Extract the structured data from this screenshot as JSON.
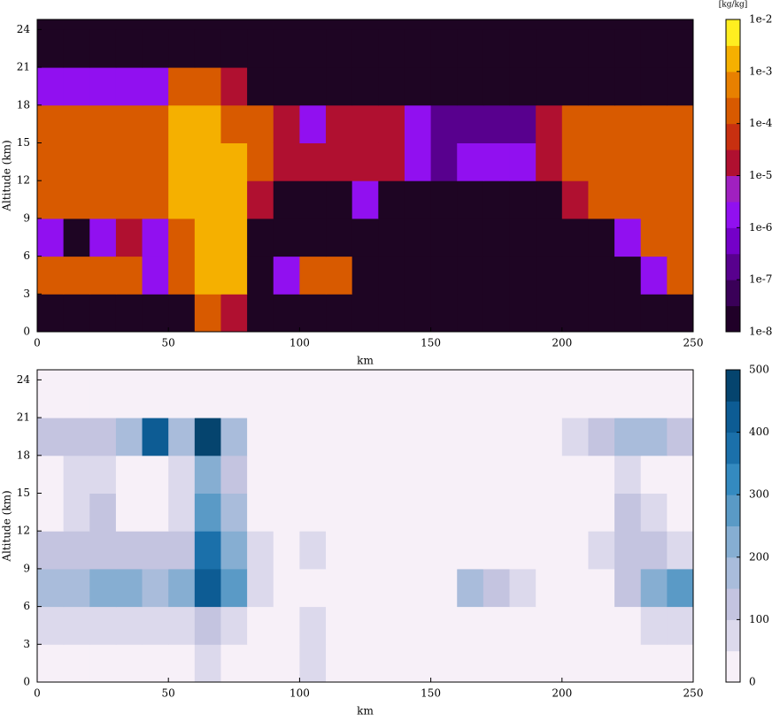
{
  "chart_data": [
    {
      "type": "heatmap",
      "xlabel": "km",
      "ylabel": "Altitude (km)",
      "xlim": [
        0,
        250
      ],
      "ylim": [
        0,
        24.8
      ],
      "xticks": [
        0,
        50,
        100,
        150,
        200,
        250
      ],
      "yticks": [
        0,
        3,
        6,
        9,
        12,
        15,
        18,
        21,
        24
      ],
      "x": [
        5,
        15,
        25,
        35,
        45,
        55,
        65,
        75,
        85,
        95,
        105,
        115,
        125,
        135,
        145,
        155,
        165,
        175,
        185,
        195,
        205,
        215,
        225,
        235,
        245
      ],
      "y": [
        1.5,
        4.5,
        7.5,
        10.5,
        13.5,
        16.5,
        19.5,
        22.5
      ],
      "background": "#1e0523",
      "z": [
        [
          0,
          0,
          0,
          0,
          0,
          0,
          0.0001,
          1e-05,
          0,
          0,
          0,
          0,
          0,
          0,
          0,
          0,
          0,
          0,
          0,
          0,
          0,
          0,
          0,
          0,
          0
        ],
        [
          0.0001,
          0.0001,
          0.0001,
          0.0001,
          1e-06,
          0.0001,
          0.003,
          0.001,
          0,
          1e-06,
          0.0001,
          0.0001,
          0,
          0,
          0,
          0,
          0,
          0,
          0,
          0,
          0,
          0,
          0,
          1e-06,
          0.0001
        ],
        [
          1e-06,
          0,
          1e-06,
          1e-05,
          1e-06,
          0.0001,
          0.003,
          0.001,
          0,
          0,
          0,
          0,
          0,
          0,
          0,
          0,
          0,
          0,
          0,
          0,
          0,
          0,
          1e-06,
          0.0001,
          0.0001
        ],
        [
          0.0001,
          0.0001,
          0.0001,
          0.0001,
          0.0001,
          0.001,
          0.003,
          0.001,
          1e-05,
          0,
          0,
          0,
          1e-06,
          0,
          0,
          0,
          0,
          0,
          0,
          0,
          1e-05,
          0.0001,
          0.0001,
          0.0001,
          0.0001
        ],
        [
          0.0001,
          0.0001,
          0.0001,
          0.0001,
          0.0001,
          0.001,
          0.001,
          0.001,
          0.0001,
          1e-05,
          1e-05,
          1e-05,
          1e-05,
          1e-05,
          1e-06,
          1e-07,
          1e-06,
          1e-06,
          1e-06,
          1e-05,
          0.0001,
          0.0001,
          0.0001,
          0.0001,
          0.0001
        ],
        [
          0.0001,
          0.0001,
          0.0001,
          0.0001,
          0.0001,
          0.001,
          0.001,
          0.0001,
          0.0001,
          1e-05,
          1e-06,
          1e-05,
          1e-05,
          1e-05,
          1e-06,
          1e-07,
          1e-07,
          1e-07,
          1e-07,
          1e-05,
          0.0001,
          0.0001,
          0.0001,
          0.0001,
          0.0001
        ],
        [
          1e-06,
          1e-06,
          1e-06,
          1e-06,
          1e-06,
          0.0001,
          0.0001,
          1e-05,
          0,
          0,
          0,
          0,
          0,
          0,
          0,
          0,
          0,
          0,
          0,
          0,
          0,
          0,
          0,
          0,
          0
        ],
        [
          0,
          0,
          0,
          0,
          0,
          0,
          0,
          0,
          0,
          0,
          0,
          0,
          0,
          0,
          0,
          0,
          0,
          0,
          0,
          0,
          0,
          0,
          0,
          0,
          0
        ]
      ],
      "colorbar": {
        "label": "[kg/kg]",
        "log": true,
        "lim": [
          1e-08,
          0.01
        ],
        "ticks": [
          {
            "value": 1e-08,
            "label": "1e-8"
          },
          {
            "value": 1e-07,
            "label": "1e-7"
          },
          {
            "value": 1e-06,
            "label": "1e-6"
          },
          {
            "value": 1e-05,
            "label": "1e-5"
          },
          {
            "value": 0.0001,
            "label": "1e-4"
          },
          {
            "value": 0.001,
            "label": "1e-3"
          },
          {
            "value": 0.01,
            "label": "1e-2"
          }
        ],
        "colors": [
          "#200028",
          "#3a0058",
          "#58008e",
          "#7400c8",
          "#9110f0",
          "#a020c0",
          "#b01030",
          "#c83010",
          "#d85a00",
          "#e88000",
          "#f5b000",
          "#ffee20"
        ]
      }
    },
    {
      "type": "heatmap",
      "xlabel": "km",
      "ylabel": "Altitude (km)",
      "xlim": [
        0,
        250
      ],
      "ylim": [
        0,
        24.8
      ],
      "xticks": [
        0,
        50,
        100,
        150,
        200,
        250
      ],
      "yticks": [
        0,
        3,
        6,
        9,
        12,
        15,
        18,
        21,
        24
      ],
      "x": [
        5,
        15,
        25,
        35,
        45,
        55,
        65,
        75,
        85,
        95,
        105,
        115,
        125,
        135,
        145,
        155,
        165,
        175,
        185,
        195,
        205,
        215,
        225,
        235,
        245
      ],
      "y": [
        1.5,
        4.5,
        7.5,
        10.5,
        13.5,
        16.5,
        19.5,
        22.5
      ],
      "z": [
        [
          25,
          25,
          25,
          25,
          25,
          25,
          75,
          25,
          25,
          25,
          75,
          25,
          25,
          25,
          25,
          25,
          25,
          25,
          25,
          25,
          25,
          25,
          25,
          25,
          25
        ],
        [
          75,
          75,
          75,
          75,
          75,
          75,
          125,
          75,
          25,
          25,
          75,
          25,
          25,
          25,
          25,
          25,
          25,
          25,
          25,
          25,
          25,
          25,
          25,
          75,
          75
        ],
        [
          175,
          175,
          225,
          225,
          175,
          225,
          425,
          275,
          75,
          25,
          25,
          25,
          25,
          25,
          25,
          25,
          175,
          125,
          75,
          25,
          25,
          25,
          125,
          225,
          275
        ],
        [
          125,
          125,
          125,
          125,
          125,
          125,
          375,
          225,
          75,
          25,
          75,
          25,
          25,
          25,
          25,
          25,
          25,
          25,
          25,
          25,
          25,
          75,
          125,
          125,
          75
        ],
        [
          25,
          75,
          125,
          25,
          25,
          75,
          275,
          175,
          25,
          25,
          25,
          25,
          25,
          25,
          25,
          25,
          25,
          25,
          25,
          25,
          25,
          25,
          125,
          75,
          25
        ],
        [
          25,
          75,
          75,
          25,
          25,
          75,
          225,
          125,
          25,
          25,
          25,
          25,
          25,
          25,
          25,
          25,
          25,
          25,
          25,
          25,
          25,
          25,
          75,
          25,
          25
        ],
        [
          125,
          125,
          125,
          175,
          425,
          175,
          475,
          175,
          25,
          25,
          25,
          25,
          25,
          25,
          25,
          25,
          25,
          25,
          25,
          25,
          75,
          125,
          175,
          175,
          125
        ],
        [
          25,
          25,
          25,
          25,
          25,
          25,
          25,
          25,
          25,
          25,
          25,
          25,
          25,
          25,
          25,
          25,
          25,
          25,
          25,
          25,
          25,
          25,
          25,
          25,
          25
        ]
      ],
      "colorbar": {
        "log": false,
        "lim": [
          0,
          500
        ],
        "ticks": [
          0,
          100,
          200,
          300,
          400,
          500
        ],
        "colors": [
          "#f7f0f8",
          "#dcd9ec",
          "#c4c4e0",
          "#a9bcdb",
          "#86aed2",
          "#5a9ac6",
          "#348ac0",
          "#1b70aa",
          "#0d5c94",
          "#05446e"
        ]
      }
    }
  ]
}
